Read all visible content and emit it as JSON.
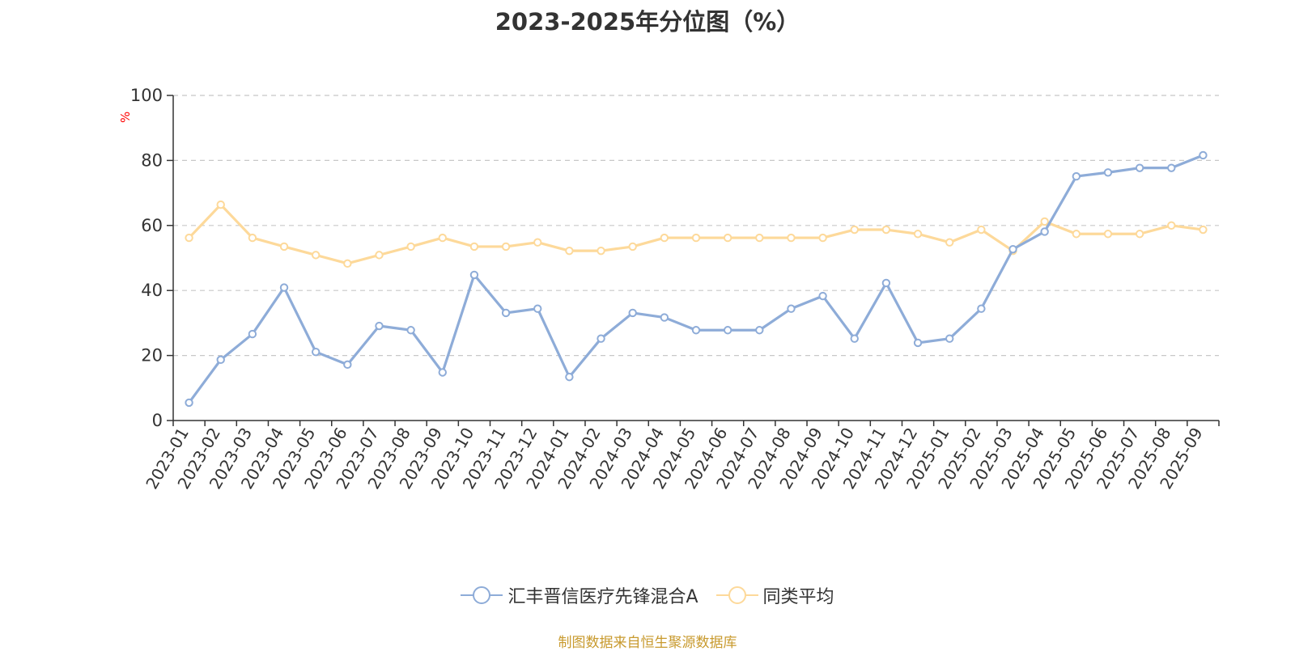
{
  "chart_data": {
    "type": "line",
    "title": "2023-2025年分位图（%）",
    "ylabel": "%",
    "xlabel": "",
    "ylim": [
      0,
      100
    ],
    "yticks": [
      0,
      20,
      40,
      60,
      80,
      100
    ],
    "grid": true,
    "legend_position": "bottom",
    "categories": [
      "2023-01",
      "2023-02",
      "2023-03",
      "2023-04",
      "2023-05",
      "2023-06",
      "2023-07",
      "2023-08",
      "2023-09",
      "2023-10",
      "2023-11",
      "2023-12",
      "2024-01",
      "2024-02",
      "2024-03",
      "2024-04",
      "2024-05",
      "2024-06",
      "2024-07",
      "2024-08",
      "2024-09",
      "2024-10",
      "2024-11",
      "2024-12",
      "2025-01",
      "2025-02",
      "2025-03",
      "2025-04",
      "2025-05",
      "2025-06",
      "2025-07",
      "2025-08",
      "2025-09"
    ],
    "series": [
      {
        "name": "汇丰晋信医疗先锋混合A",
        "color": "#8eacd8",
        "values": [
          5.5,
          18.7,
          26.6,
          40.9,
          21.1,
          17.2,
          29.1,
          27.8,
          14.8,
          44.8,
          33.1,
          34.4,
          13.4,
          25.2,
          33.1,
          31.7,
          27.8,
          27.8,
          27.8,
          34.4,
          38.3,
          25.2,
          42.3,
          23.9,
          25.2,
          34.4,
          52.7,
          58.1,
          75.1,
          76.3,
          77.7,
          77.7,
          81.6
        ]
      },
      {
        "name": "同类平均",
        "color": "#fdd99a",
        "values": [
          56.2,
          66.4,
          56.2,
          53.5,
          50.9,
          48.3,
          50.9,
          53.5,
          56.2,
          53.5,
          53.5,
          54.8,
          52.2,
          52.2,
          53.5,
          56.2,
          56.2,
          56.2,
          56.2,
          56.2,
          56.2,
          58.7,
          58.7,
          57.4,
          54.8,
          58.7,
          52.2,
          61.2,
          57.4,
          57.4,
          57.4,
          60.0,
          58.7
        ]
      }
    ]
  },
  "footer": {
    "source": "制图数据来自恒生聚源数据库"
  }
}
